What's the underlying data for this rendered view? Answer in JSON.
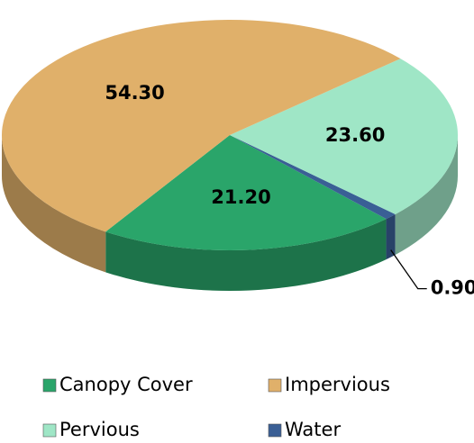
{
  "chart_data": {
    "type": "pie",
    "categories": [
      "Canopy Cover",
      "Water",
      "Pervious",
      "Impervious"
    ],
    "values": [
      21.2,
      0.9,
      23.6,
      54.3
    ],
    "value_labels": [
      "21.20",
      "0.90",
      "23.60",
      "54.30"
    ],
    "colors": [
      "#2aa56a",
      "#3a5f95",
      "#9fe6c6",
      "#e0b06a"
    ],
    "legend_order": [
      0,
      3,
      2,
      1
    ]
  }
}
